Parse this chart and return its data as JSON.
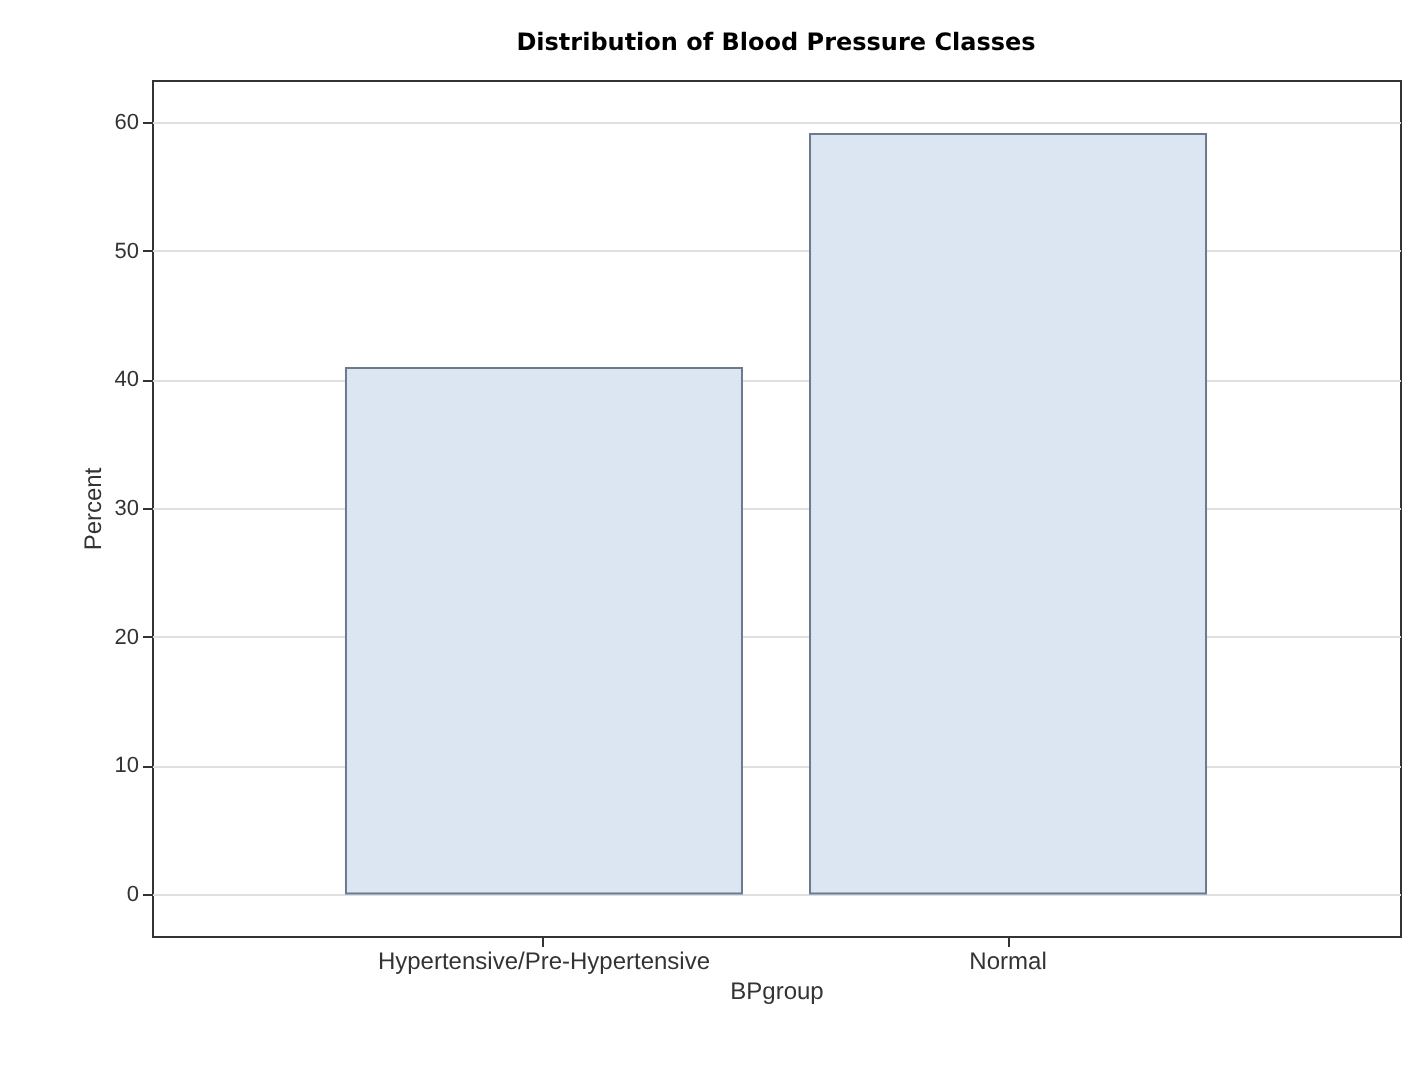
{
  "chart_data": {
    "type": "bar",
    "title": "Distribution of Blood Pressure Classes",
    "xlabel": "BPgroup",
    "ylabel": "Percent",
    "categories": [
      "Hypertensive/Pre-Hypertensive",
      "Normal"
    ],
    "values": [
      40.9,
      59.1
    ],
    "color": "#dce6f2",
    "ylim": [
      -3.3,
      63.3
    ],
    "yticks": [
      0,
      10,
      20,
      30,
      40,
      50,
      60
    ],
    "grid": "y"
  }
}
